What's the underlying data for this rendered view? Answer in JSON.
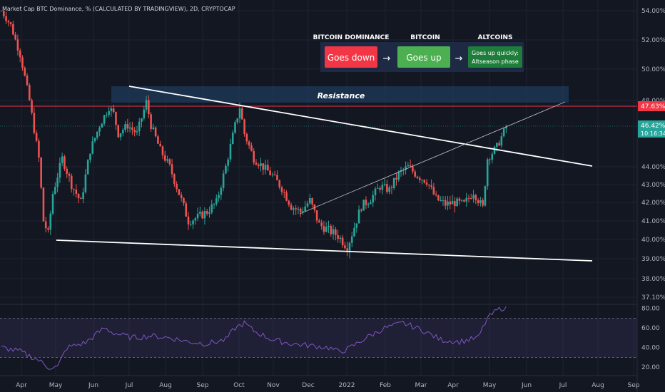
{
  "chart_data": {
    "type": "candlestick",
    "title": "Market Cap BTC Dominance, % (CALCULATED BY TRADINGVIEW), 2D, CRYPTOCAP",
    "x_ticks": [
      "Apr",
      "May",
      "Jun",
      "Jul",
      "Aug",
      "Sep",
      "Oct",
      "Nov",
      "Dec",
      "2022",
      "Feb",
      "Mar",
      "Apr",
      "May",
      "Jun",
      "Jul",
      "Aug",
      "Sep"
    ],
    "y_ticks": [
      "54.00%",
      "52.00%",
      "50.00%",
      "48.00%",
      "44.00%",
      "43.00%",
      "42.00%",
      "41.00%",
      "40.00%",
      "39.00%",
      "38.00%",
      "37.10%"
    ],
    "ylim": [
      37.1,
      54.0
    ],
    "y_scale": "log",
    "price_path": [
      [
        0,
        54.0
      ],
      [
        2,
        53.0
      ],
      [
        4,
        51.0
      ],
      [
        6,
        48.0
      ],
      [
        8,
        44.5
      ],
      [
        9,
        41.0
      ],
      [
        10,
        40.3
      ],
      [
        11,
        42.5
      ],
      [
        13,
        44.5
      ],
      [
        15,
        43.0
      ],
      [
        17,
        42.0
      ],
      [
        19,
        45.0
      ],
      [
        21,
        46.5
      ],
      [
        23,
        47.6
      ],
      [
        24,
        47.2
      ],
      [
        25,
        46.0
      ],
      [
        27,
        46.5
      ],
      [
        29,
        46.0
      ],
      [
        31,
        47.9
      ],
      [
        32,
        46.5
      ],
      [
        34,
        45.0
      ],
      [
        36,
        44.0
      ],
      [
        38,
        42.5
      ],
      [
        40,
        41.0
      ],
      [
        42,
        41.2
      ],
      [
        44,
        41.5
      ],
      [
        46,
        42.0
      ],
      [
        48,
        44.0
      ],
      [
        50,
        46.5
      ],
      [
        51,
        47.6
      ],
      [
        52,
        46.0
      ],
      [
        54,
        44.5
      ],
      [
        56,
        44.0
      ],
      [
        58,
        43.5
      ],
      [
        60,
        42.8
      ],
      [
        62,
        41.8
      ],
      [
        64,
        41.5
      ],
      [
        66,
        42.1
      ],
      [
        68,
        40.8
      ],
      [
        70,
        40.5
      ],
      [
        72,
        40.2
      ],
      [
        74,
        39.6
      ],
      [
        75,
        40.3
      ],
      [
        77,
        41.8
      ],
      [
        79,
        42.2
      ],
      [
        81,
        42.9
      ],
      [
        83,
        42.7
      ],
      [
        85,
        43.6
      ],
      [
        87,
        44.0
      ],
      [
        89,
        43.5
      ],
      [
        91,
        43.2
      ],
      [
        93,
        42.2
      ],
      [
        95,
        41.9
      ],
      [
        97,
        42.0
      ],
      [
        99,
        41.9
      ],
      [
        101,
        42.6
      ],
      [
        103,
        41.7
      ],
      [
        104,
        44.5
      ],
      [
        106,
        45.2
      ],
      [
        108,
        46.4
      ]
    ],
    "last_value": "46.42%",
    "countdown": "10:16:34",
    "resistance_line_value": "47.63%",
    "annotations": {
      "resistance_label": "Resistance",
      "flow": [
        {
          "header": "BITCOIN DOMINANCE",
          "text": "Goes down",
          "color": "#f23645"
        },
        {
          "header": "BITCOIN",
          "text": "Goes up",
          "color": "#4caf50"
        },
        {
          "header": "ALTCOINS",
          "text_line1": "Goes up quickly:",
          "text_line2": "Altseason phase",
          "color": "#1e7d3a"
        }
      ],
      "arrow": "→"
    },
    "rsi": {
      "y_ticks": [
        "80.00",
        "60.00",
        "40.00",
        "20.00"
      ],
      "ylim": [
        15,
        82
      ],
      "band": [
        30,
        70
      ],
      "path": [
        [
          0,
          40
        ],
        [
          4,
          36
        ],
        [
          8,
          27
        ],
        [
          10,
          20
        ],
        [
          12,
          20
        ],
        [
          14,
          40
        ],
        [
          18,
          45
        ],
        [
          22,
          60
        ],
        [
          24,
          55
        ],
        [
          28,
          50
        ],
        [
          32,
          52
        ],
        [
          36,
          50
        ],
        [
          40,
          46
        ],
        [
          44,
          44
        ],
        [
          48,
          48
        ],
        [
          50,
          60
        ],
        [
          52,
          65
        ],
        [
          54,
          57
        ],
        [
          58,
          48
        ],
        [
          62,
          44
        ],
        [
          66,
          42
        ],
        [
          70,
          40
        ],
        [
          72,
          36
        ],
        [
          74,
          38
        ],
        [
          78,
          50
        ],
        [
          82,
          60
        ],
        [
          86,
          65
        ],
        [
          90,
          58
        ],
        [
          94,
          48
        ],
        [
          98,
          46
        ],
        [
          102,
          50
        ],
        [
          104,
          70
        ],
        [
          106,
          78
        ],
        [
          108,
          82
        ]
      ]
    },
    "colors": {
      "up": "#26a69a",
      "down": "#ef5350",
      "rsi_line": "#7e57c2",
      "resistance_hline": "#f23645",
      "trendline": "#ffffff"
    }
  }
}
